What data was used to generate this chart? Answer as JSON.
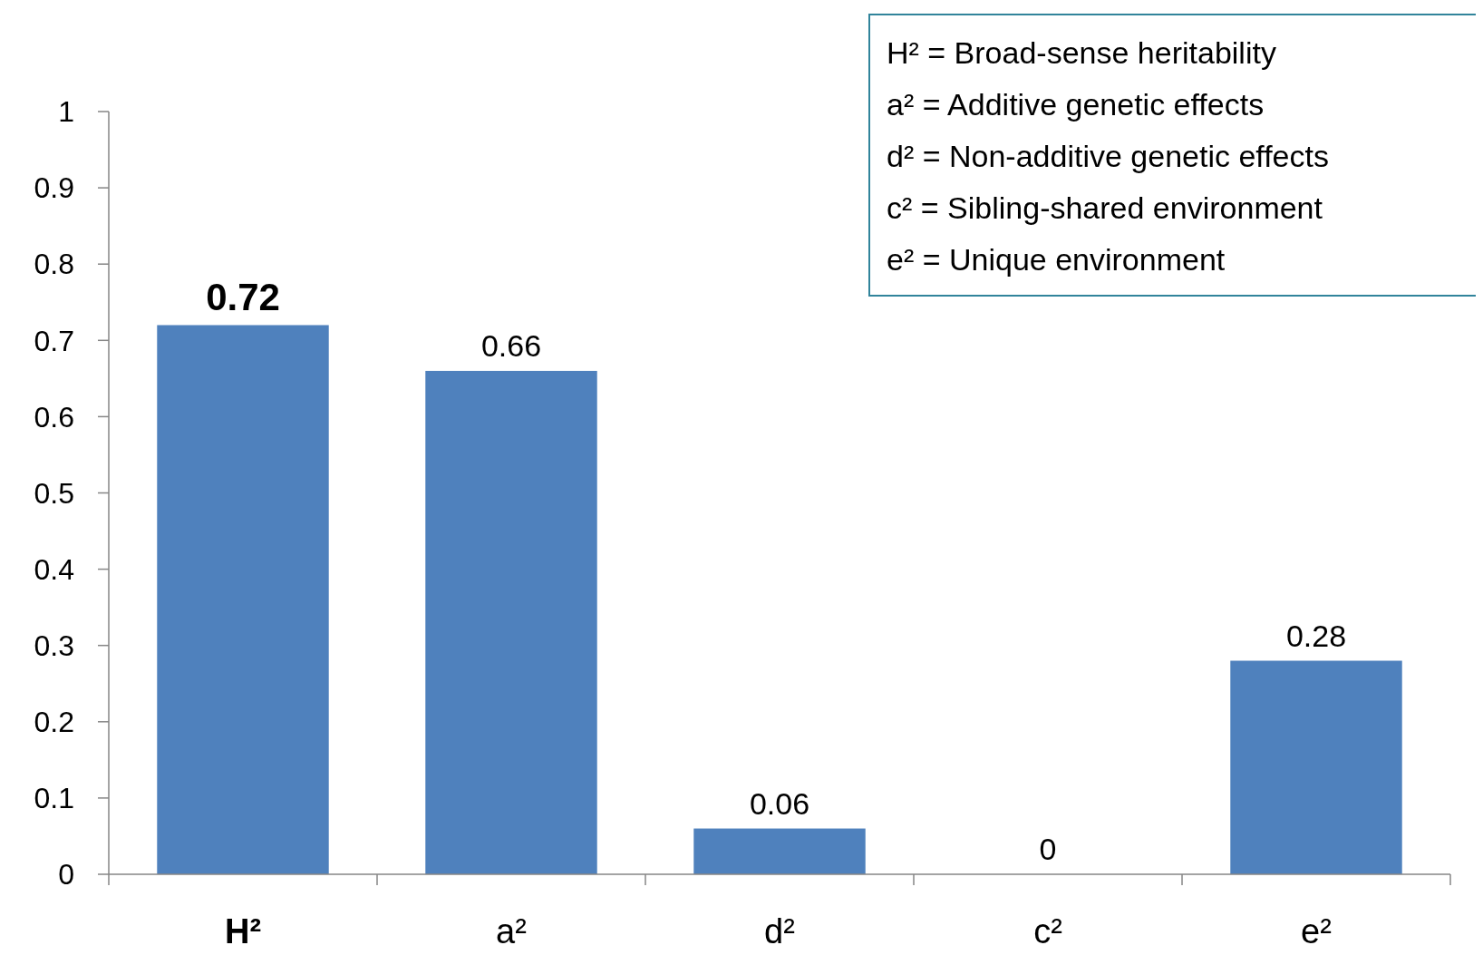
{
  "chart_data": {
    "type": "bar",
    "categories": [
      "H²",
      "a²",
      "d²",
      "c²",
      "e²"
    ],
    "values": [
      0.72,
      0.66,
      0.06,
      0,
      0.28
    ],
    "color": "#4f81bd",
    "ylim": [
      0,
      1
    ],
    "yticks": [
      0,
      0.1,
      0.2,
      0.3,
      0.4,
      0.5,
      0.6,
      0.7,
      0.8,
      0.9,
      1
    ],
    "data_labels": true,
    "grid": false,
    "annotations": [
      "H² = Broad-sense heritability",
      "a²  = Additive genetic effects",
      "d² = Non-additive genetic effects",
      "c²  = Sibling-shared environment",
      "e²  = Unique environment"
    ]
  }
}
